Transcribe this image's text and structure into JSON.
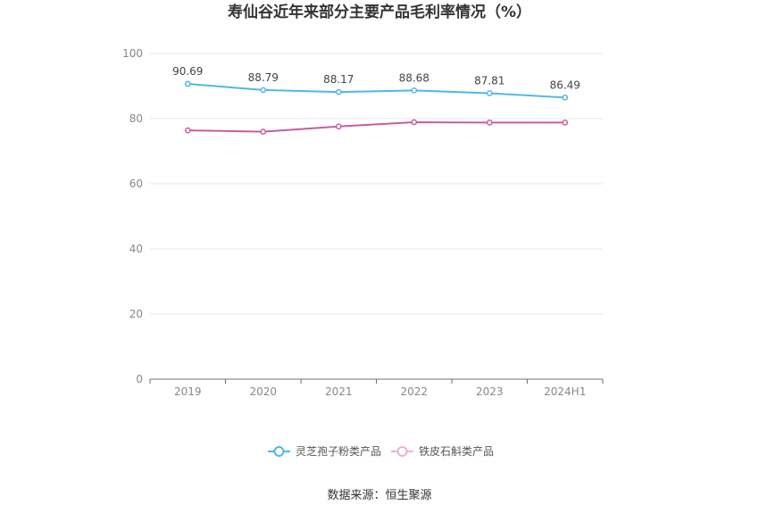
{
  "chart_data": {
    "type": "line",
    "title": "寿仙谷近年来部分主要产品毛利率情况（%）",
    "categories": [
      "2019",
      "2020",
      "2021",
      "2022",
      "2023",
      "2024H1"
    ],
    "ylim": [
      0,
      100
    ],
    "yticks": [
      "0",
      "20",
      "40",
      "60",
      "80",
      "100"
    ],
    "grid": true,
    "legend_position": "bottom",
    "series": [
      {
        "name": "灵芝孢子粉类产品",
        "values": [
          90.69,
          88.79,
          88.17,
          88.68,
          87.81,
          86.49
        ],
        "labels": [
          "90.69",
          "88.79",
          "88.17",
          "88.68",
          "87.81",
          "86.49"
        ],
        "color": "#4fb6ea"
      },
      {
        "name": "铁皮石斛类产品",
        "values": [
          76.4,
          76.0,
          77.6,
          78.9,
          78.8,
          78.8
        ],
        "color": "#c95ca0"
      }
    ]
  },
  "legend_icons": [
    "circle-line-marker",
    "circle-line-marker"
  ],
  "source": "数据来源：恒生聚源"
}
